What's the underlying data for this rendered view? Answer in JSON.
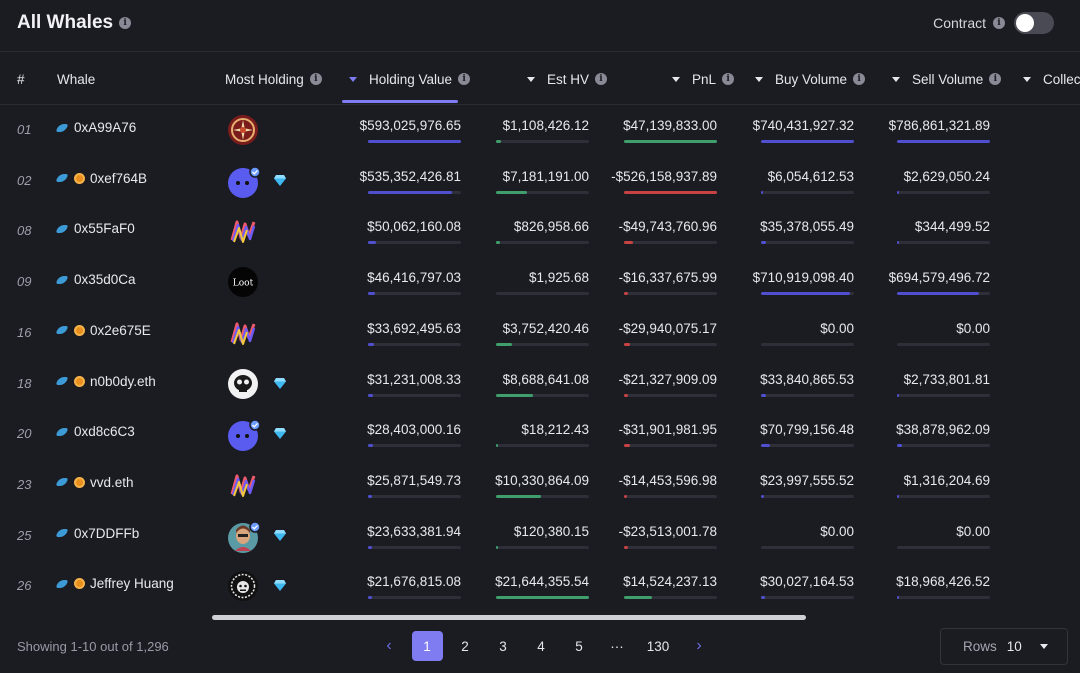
{
  "header": {
    "title": "All Whales",
    "contract_label": "Contract"
  },
  "columns": {
    "rank": "#",
    "whale": "Whale",
    "most_holding": "Most Holding",
    "holding_value": "Holding Value",
    "est_hv": "Est HV",
    "pnl": "PnL",
    "buy_volume": "Buy Volume",
    "sell_volume": "Sell Volume",
    "collections": "Collec"
  },
  "colors": {
    "accent": "#7f7cf2",
    "green": "#3f9e6c",
    "red": "#c74343",
    "blue_bar": "#4f4fd0"
  },
  "rows": [
    {
      "rank": "01",
      "whale": "0xA99A76",
      "badge": false,
      "avatar": "compass-avatar",
      "gem": false,
      "holding_value": "$593,025,976.65",
      "hv_pct": 100,
      "est_hv": "$1,108,426.12",
      "est_pct": 5,
      "pnl": "$47,139,833.00",
      "pnl_pct": 100,
      "pnl_neg": false,
      "buy_volume": "$740,431,927.32",
      "buy_pct": 100,
      "sell_volume": "$786,861,321.89",
      "sell_pct": 100
    },
    {
      "rank": "02",
      "whale": "0xef764B",
      "badge": true,
      "avatar": "blue-blob-avatar",
      "gem": true,
      "holding_value": "$535,352,426.81",
      "hv_pct": 90,
      "est_hv": "$7,181,191.00",
      "est_pct": 33,
      "pnl": "-$526,158,937.89",
      "pnl_pct": 100,
      "pnl_neg": true,
      "buy_volume": "$6,054,612.53",
      "buy_pct": 1,
      "sell_volume": "$2,629,050.24",
      "sell_pct": 1
    },
    {
      "rank": "08",
      "whale": "0x55FaF0",
      "badge": false,
      "avatar": "rainbow-wave-avatar",
      "gem": false,
      "holding_value": "$50,062,160.08",
      "hv_pct": 9,
      "est_hv": "$826,958.66",
      "est_pct": 4,
      "pnl": "-$49,743,760.96",
      "pnl_pct": 10,
      "pnl_neg": true,
      "buy_volume": "$35,378,055.49",
      "buy_pct": 5,
      "sell_volume": "$344,499.52",
      "sell_pct": 1
    },
    {
      "rank": "09",
      "whale": "0x35d0Ca",
      "badge": false,
      "avatar": "loot-avatar",
      "gem": false,
      "holding_value": "$46,416,797.03",
      "hv_pct": 8,
      "est_hv": "$1,925.68",
      "est_pct": 0,
      "pnl": "-$16,337,675.99",
      "pnl_pct": 4,
      "pnl_neg": true,
      "buy_volume": "$710,919,098.40",
      "buy_pct": 96,
      "sell_volume": "$694,579,496.72",
      "sell_pct": 88
    },
    {
      "rank": "16",
      "whale": "0x2e675E",
      "badge": true,
      "avatar": "rainbow-wave-avatar",
      "gem": false,
      "holding_value": "$33,692,495.63",
      "hv_pct": 6,
      "est_hv": "$3,752,420.46",
      "est_pct": 17,
      "pnl": "-$29,940,075.17",
      "pnl_pct": 6,
      "pnl_neg": true,
      "buy_volume": "$0.00",
      "buy_pct": 0,
      "sell_volume": "$0.00",
      "sell_pct": 0
    },
    {
      "rank": "18",
      "whale": "n0b0dy.eth",
      "badge": true,
      "avatar": "skull-ape-avatar",
      "gem": true,
      "holding_value": "$31,231,008.33",
      "hv_pct": 5,
      "est_hv": "$8,688,641.08",
      "est_pct": 40,
      "pnl": "-$21,327,909.09",
      "pnl_pct": 4,
      "pnl_neg": true,
      "buy_volume": "$33,840,865.53",
      "buy_pct": 5,
      "sell_volume": "$2,733,801.81",
      "sell_pct": 1
    },
    {
      "rank": "20",
      "whale": "0xd8c6C3",
      "badge": false,
      "avatar": "blue-blob-avatar",
      "gem": true,
      "holding_value": "$28,403,000.16",
      "hv_pct": 5,
      "est_hv": "$18,212.43",
      "est_pct": 1,
      "pnl": "-$31,901,981.95",
      "pnl_pct": 6,
      "pnl_neg": true,
      "buy_volume": "$70,799,156.48",
      "buy_pct": 10,
      "sell_volume": "$38,878,962.09",
      "sell_pct": 5
    },
    {
      "rank": "23",
      "whale": "vvd.eth",
      "badge": true,
      "avatar": "rainbow-wave-avatar",
      "gem": false,
      "holding_value": "$25,871,549.73",
      "hv_pct": 4,
      "est_hv": "$10,330,864.09",
      "est_pct": 48,
      "pnl": "-$14,453,596.98",
      "pnl_pct": 3,
      "pnl_neg": true,
      "buy_volume": "$23,997,555.52",
      "buy_pct": 3,
      "sell_volume": "$1,316,204.69",
      "sell_pct": 1
    },
    {
      "rank": "25",
      "whale": "0x7DDFFb",
      "badge": false,
      "avatar": "woman-portrait-avatar",
      "gem": true,
      "holding_value": "$23,633,381.94",
      "hv_pct": 4,
      "est_hv": "$120,380.15",
      "est_pct": 1,
      "pnl": "-$23,513,001.78",
      "pnl_pct": 4,
      "pnl_neg": true,
      "buy_volume": "$0.00",
      "buy_pct": 0,
      "sell_volume": "$0.00",
      "sell_pct": 0
    },
    {
      "rank": "26",
      "whale": "Jeffrey Huang",
      "badge": true,
      "avatar": "gorilla-badge-avatar",
      "gem": true,
      "holding_value": "$21,676,815.08",
      "hv_pct": 4,
      "est_hv": "$21,644,355.54",
      "est_pct": 100,
      "pnl": "$14,524,237.13",
      "pnl_pct": 30,
      "pnl_neg": false,
      "buy_volume": "$30,027,164.53",
      "buy_pct": 4,
      "sell_volume": "$18,968,426.52",
      "sell_pct": 2
    }
  ],
  "footer": {
    "showing": "Showing 1-10 out of 1,296",
    "pages": [
      "1",
      "2",
      "3",
      "4",
      "5",
      "···",
      "130"
    ],
    "current_page": "1",
    "rows_label": "Rows",
    "rows_value": "10"
  }
}
